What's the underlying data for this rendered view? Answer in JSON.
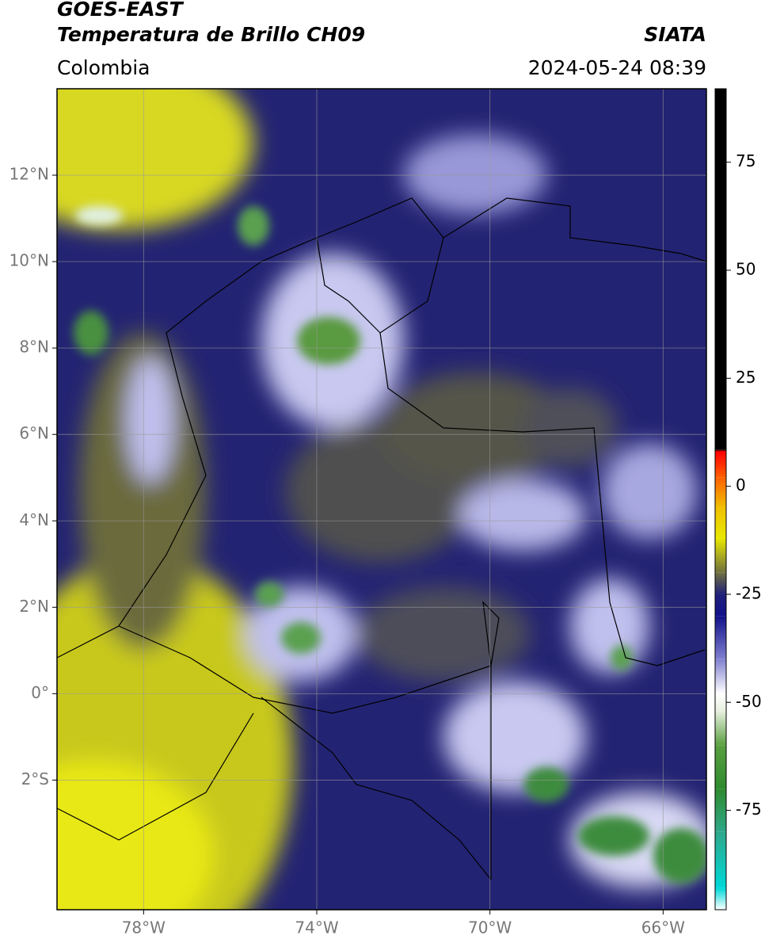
{
  "header": {
    "title": "GOES-EAST",
    "subtitle": "Temperatura de Brillo CH09",
    "source": "SIATA",
    "region": "Colombia",
    "datetime": "2024-05-24 08:39"
  },
  "map": {
    "xlim": [
      -80,
      -65
    ],
    "ylim": [
      -5,
      14
    ],
    "grid": true,
    "xticks": [
      {
        "value": -78,
        "label": "78°W"
      },
      {
        "value": -74,
        "label": "74°W"
      },
      {
        "value": -70,
        "label": "70°W"
      },
      {
        "value": -66,
        "label": "66°W"
      }
    ],
    "yticks": [
      {
        "value": 12,
        "label": "12°N"
      },
      {
        "value": 10,
        "label": "10°N"
      },
      {
        "value": 8,
        "label": "8°N"
      },
      {
        "value": 6,
        "label": "6°N"
      },
      {
        "value": 4,
        "label": "4°N"
      },
      {
        "value": 2,
        "label": "2°N"
      },
      {
        "value": 0,
        "label": "0°"
      },
      {
        "value": -2,
        "label": "2°S"
      }
    ]
  },
  "colorbar": {
    "lim": [
      -98,
      92
    ],
    "ticks": [
      -75,
      -50,
      -25,
      0,
      25,
      50,
      75
    ],
    "stops": [
      {
        "value": -98,
        "color": "#ffffff"
      },
      {
        "value": -93,
        "color": "#00d8d8"
      },
      {
        "value": -80,
        "color": "#2ea88a"
      },
      {
        "value": -70,
        "color": "#2e8b2e"
      },
      {
        "value": -60,
        "color": "#5aa040"
      },
      {
        "value": -52,
        "color": "#e8f0e0"
      },
      {
        "value": -48,
        "color": "#ffffff"
      },
      {
        "value": -40,
        "color": "#8080d0"
      },
      {
        "value": -30,
        "color": "#10108a"
      },
      {
        "value": -25,
        "color": "#20207a"
      },
      {
        "value": -20,
        "color": "#707040"
      },
      {
        "value": -12,
        "color": "#e8e800"
      },
      {
        "value": -5,
        "color": "#f0c000"
      },
      {
        "value": 2,
        "color": "#ff6000"
      },
      {
        "value": 8,
        "color": "#ff0000"
      },
      {
        "value": 8.5,
        "color": "#000000"
      },
      {
        "value": 92,
        "color": "#000000"
      }
    ]
  }
}
